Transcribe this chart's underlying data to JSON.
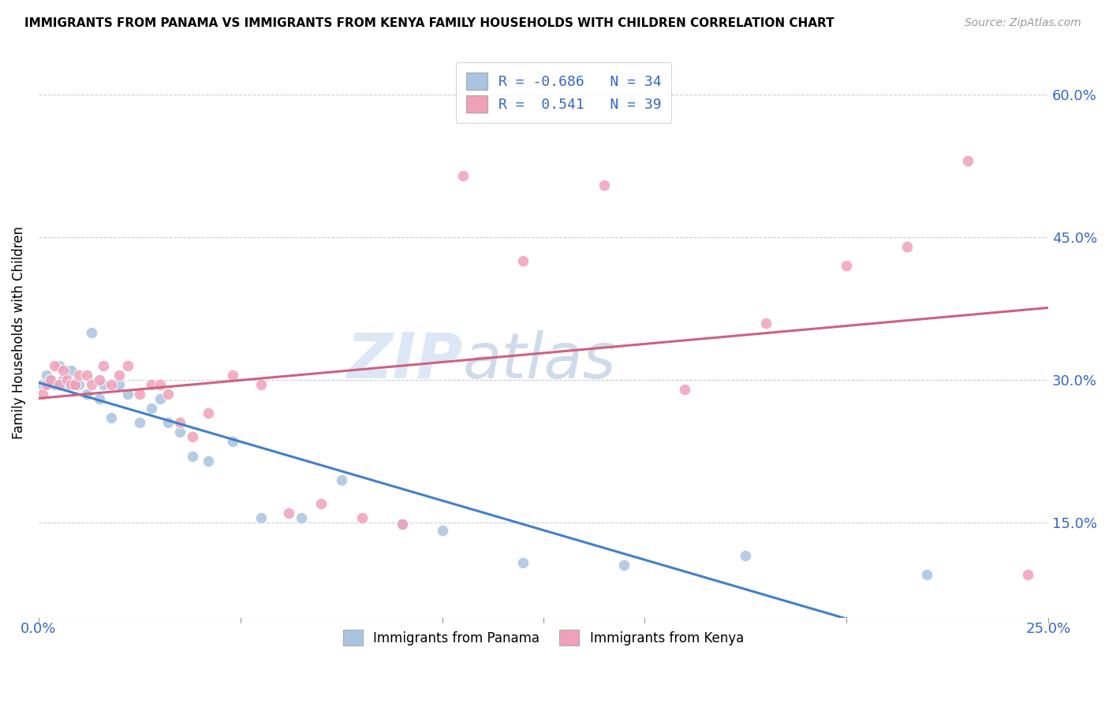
{
  "title": "IMMIGRANTS FROM PANAMA VS IMMIGRANTS FROM KENYA FAMILY HOUSEHOLDS WITH CHILDREN CORRELATION CHART",
  "source": "Source: ZipAtlas.com",
  "ylabel": "Family Households with Children",
  "ytick_labels": [
    "15.0%",
    "30.0%",
    "45.0%",
    "60.0%"
  ],
  "ytick_values": [
    0.15,
    0.3,
    0.45,
    0.6
  ],
  "xlim": [
    0.0,
    0.25
  ],
  "ylim": [
    0.05,
    0.65
  ],
  "legend_label1": "R = -0.686   N = 34",
  "legend_label2": "R =  0.541   N = 39",
  "legend_bottom1": "Immigrants from Panama",
  "legend_bottom2": "Immigrants from Kenya",
  "color_blue": "#a8c4e0",
  "color_pink": "#f0a0b8",
  "line_blue": "#4080cc",
  "line_pink": "#d06080",
  "panama_x": [
    0.001,
    0.002,
    0.003,
    0.004,
    0.005,
    0.006,
    0.007,
    0.008,
    0.009,
    0.01,
    0.012,
    0.013,
    0.015,
    0.016,
    0.018,
    0.02,
    0.022,
    0.025,
    0.028,
    0.03,
    0.032,
    0.035,
    0.038,
    0.042,
    0.048,
    0.055,
    0.065,
    0.075,
    0.09,
    0.1,
    0.12,
    0.145,
    0.175,
    0.22
  ],
  "panama_y": [
    0.295,
    0.305,
    0.3,
    0.295,
    0.315,
    0.3,
    0.295,
    0.31,
    0.295,
    0.295,
    0.285,
    0.35,
    0.28,
    0.295,
    0.26,
    0.295,
    0.285,
    0.255,
    0.27,
    0.28,
    0.255,
    0.245,
    0.22,
    0.215,
    0.235,
    0.155,
    0.155,
    0.195,
    0.148,
    0.142,
    0.108,
    0.105,
    0.115,
    0.095
  ],
  "kenya_x": [
    0.001,
    0.002,
    0.003,
    0.004,
    0.005,
    0.006,
    0.007,
    0.008,
    0.009,
    0.01,
    0.012,
    0.013,
    0.015,
    0.016,
    0.018,
    0.02,
    0.022,
    0.025,
    0.028,
    0.03,
    0.032,
    0.035,
    0.038,
    0.042,
    0.048,
    0.055,
    0.062,
    0.07,
    0.08,
    0.09,
    0.105,
    0.12,
    0.14,
    0.16,
    0.18,
    0.2,
    0.215,
    0.23,
    0.245
  ],
  "kenya_y": [
    0.285,
    0.295,
    0.3,
    0.315,
    0.295,
    0.31,
    0.3,
    0.295,
    0.295,
    0.305,
    0.305,
    0.295,
    0.3,
    0.315,
    0.295,
    0.305,
    0.315,
    0.285,
    0.295,
    0.295,
    0.285,
    0.255,
    0.24,
    0.265,
    0.305,
    0.295,
    0.16,
    0.17,
    0.155,
    0.148,
    0.515,
    0.425,
    0.505,
    0.29,
    0.36,
    0.42,
    0.44,
    0.53,
    0.095
  ],
  "watermark_zip": "ZIP",
  "watermark_atlas": "atlas",
  "background_color": "#ffffff",
  "grid_color": "#cccccc"
}
